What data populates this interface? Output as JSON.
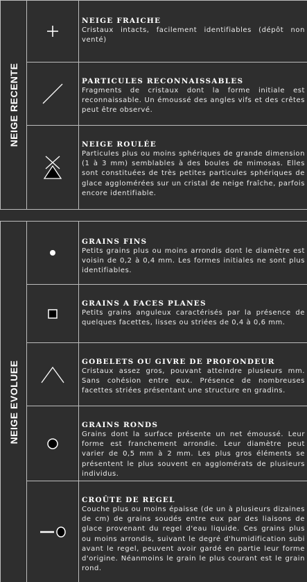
{
  "sections": {
    "recent": {
      "label": "NEIGE RECENTE",
      "items": [
        {
          "icon": "plus-icon",
          "title": "NEIGE FRAICHE",
          "text": "Cristaux intacts, facilement identifiables (dépôt non venté)"
        },
        {
          "icon": "slash-icon",
          "title": "PARTICULES RECONNAISSABLES",
          "text": "Fragments de cristaux dont la forme initiale est reconnaissable. Un émoussé des angles vifs et des crêtes peut être observé."
        },
        {
          "icon": "triangle-x-icon",
          "title": "NEIGE ROULÉE",
          "text": "Particules plus ou moins sphériques de grande dimension (1 à 3 mm) semblables à des boules de mimosas. Elles sont constituées de très petites particules sphériques de glace agglomérées sur un cristal de neige fraîche, parfois encore identifiable."
        }
      ]
    },
    "evolved": {
      "label": "NEIGE EVOLUEE",
      "items": [
        {
          "icon": "small-dot-icon",
          "title": "GRAINS FINS",
          "text": "Petits grains plus ou moins arrondis dont le diamètre est voisin de 0,2 à 0,4 mm. Les formes initiales ne sont plus identifiables."
        },
        {
          "icon": "square-icon",
          "title": "GRAINS A FACES PLANES",
          "text": "Petits grains anguleux caractérisés par la présence de quelques facettes, lisses ou striées de 0,4 à 0,6 mm."
        },
        {
          "icon": "caret-icon",
          "title": "GOBELETS OU GIVRE DE PROFONDEUR",
          "text": "Cristaux assez gros, pouvant atteindre plusieurs mm. Sans cohésion entre eux. Présence de nombreuses facettes striées présentant une structure en gradins."
        },
        {
          "icon": "filled-circle-icon",
          "title": "GRAINS RONDS",
          "text": "Grains dont la surface présente un net émoussé. Leur forme est franchement arrondie. Leur diamètre peut varier de 0,5 mm à 2 mm. Les plus gros éléments se présentent le plus souvent en agglomérats de plusieurs individus."
        },
        {
          "icon": "dash-dot-icon",
          "title": "CROÛTE DE REGEL",
          "text": "Couche plus ou moins épaisse (de un à plusieurs dizaines de cm) de grains soudés entre eux par des liaisons de glace provenant du regel d'eau liquide. Ces grains plus ou moins arrondis, suivant le degré d'humidification subi avant le regel, peuvent avoir gardé en partie leur forme d'origine. Néanmoins le grain le plus courant est le grain rond."
        }
      ]
    }
  },
  "colors": {
    "background": "#2e2e2e",
    "border": "#bdbdbd",
    "text": "#ececec",
    "icon": "#ffffff",
    "icon_fill": "#000000"
  }
}
